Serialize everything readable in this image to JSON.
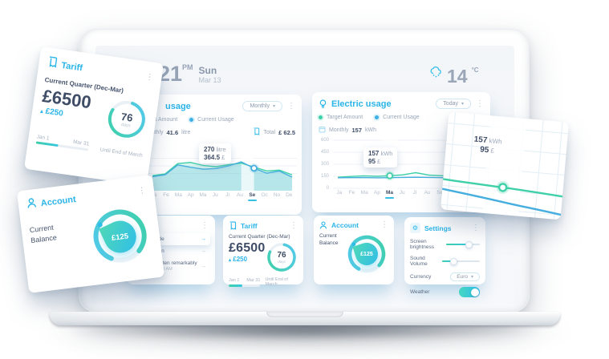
{
  "icons": {
    "kebab": "⋮",
    "caret": "▾",
    "arrow": "→",
    "up": "▴",
    "gear": "⚙",
    "degree": "°C"
  },
  "header": {
    "time": "21",
    "meridiem": "PM",
    "day": "Sun",
    "date": "Mar 13",
    "temp": "14"
  },
  "water_card": {
    "title": "usage",
    "dropdown": "Monthly",
    "legend": {
      "target": "Target Amount",
      "current": "Current Usage"
    },
    "period_label": "Monthly",
    "period_value": "41.6",
    "period_unit": "litre",
    "total_label": "Total",
    "total_value": "£ 62.5",
    "tooltip": {
      "value": "270",
      "unit": "litre",
      "price": "364.5",
      "currency": "£"
    }
  },
  "electric_card": {
    "title": "Electric usage",
    "dropdown": "Today",
    "legend": {
      "target": "Target Amount",
      "current": "Current Usage"
    },
    "period_label": "Monthly",
    "period_value": "157",
    "period_unit": "kWh",
    "tooltip": {
      "value": "157",
      "unit": "kWh",
      "price": "95",
      "currency": "£"
    }
  },
  "chart_data": [
    {
      "type": "area",
      "title": "Water usage (monthly)",
      "categories": [
        "Ja",
        "Fe",
        "Ma",
        "Ap",
        "Ma",
        "Ju",
        "Jl",
        "Au",
        "Se",
        "Oc",
        "No",
        "De"
      ],
      "series": [
        {
          "name": "Target Amount",
          "color": "#3ed0a8",
          "fill": "rgba(62,208,168,0.20)",
          "values": [
            175,
            195,
            330,
            345,
            305,
            290,
            315,
            335,
            285,
            235,
            245,
            185
          ]
        },
        {
          "name": "Current Usage",
          "color": "#45aede",
          "fill": "rgba(69,174,222,0.22)",
          "values": [
            160,
            185,
            312,
            282,
            258,
            266,
            300,
            352,
            270,
            206,
            233,
            155
          ]
        }
      ],
      "ylim": [
        0,
        600
      ],
      "ytick_values": [
        400,
        300,
        200
      ],
      "grid": true,
      "legend_position": "top",
      "active_index": 8,
      "band": [
        7,
        8
      ],
      "marker": {
        "series": 1,
        "index": 8
      },
      "annotation": "270 litre / 364.5 £ at Se"
    },
    {
      "type": "line",
      "title": "Electric usage (monthly)",
      "categories": [
        "Ja",
        "Fe",
        "Ma",
        "Ap",
        "Ma",
        "Ju",
        "Jl",
        "Au",
        "Se",
        "Oc",
        "No",
        "De"
      ],
      "series": [
        {
          "name": "Target Amount",
          "color": "#3ed0a8",
          "fill": null,
          "values": [
            138,
            148,
            156,
            150,
            157,
            168,
            195,
            166,
            157,
            149,
            142,
            136
          ]
        },
        {
          "name": "Current Usage",
          "color": "#45aede",
          "fill": null,
          "values": [
            132,
            133,
            134,
            131,
            133,
            136,
            138,
            136,
            133,
            128,
            122,
            110
          ]
        }
      ],
      "ylim": [
        0,
        600
      ],
      "ytick_values": [
        600,
        450,
        300,
        150,
        0
      ],
      "grid": true,
      "legend_position": "top",
      "active_index": 4,
      "band": [
        3.4,
        4.6
      ],
      "marker": {
        "series": 0,
        "index": 4
      },
      "annotation": "157 kWh / 95 £ at Ma"
    }
  ],
  "notifications_card": {
    "items": [
      {
        "text": "se solicitude",
        "time": ""
      },
      {
        "text": "change man",
        "time": ""
      },
      {
        "text": "Indulgence ten remarkably",
        "time": "March 2, 11:20 AM"
      }
    ]
  },
  "tariff": {
    "title": "Tariff",
    "subtitle": "Current Quarter (Dec-Mar)",
    "amount": "£6500",
    "delta": "£250",
    "days": "76",
    "days_unit": "days",
    "start": "Jan 1",
    "end": "Mar 31",
    "footnote": "Until End of March"
  },
  "account": {
    "title": "Account",
    "label_1": "Current",
    "label_2": "Balance",
    "balance": "£125"
  },
  "settings": {
    "title": "Settings",
    "brightness_label": "Screen brightness",
    "brightness_pct": 66,
    "volume_label": "Sound Volume",
    "volume_pct": 30,
    "currency_label": "Currency",
    "currency_value": "Euro",
    "weather_label": "Weather",
    "weather_on": true
  },
  "zoom_card": {
    "value": "157",
    "unit": "kWh",
    "price": "95",
    "currency": "£"
  },
  "colors": {
    "brand_cyan": "#2bb5e8",
    "navy": "#3e4c66",
    "green_line": "#3ed0a8",
    "blue_line": "#45aede"
  }
}
